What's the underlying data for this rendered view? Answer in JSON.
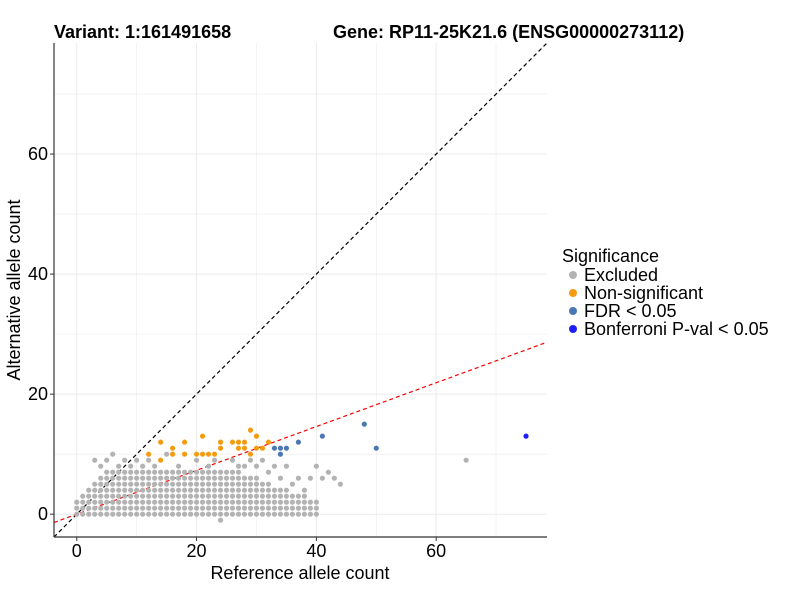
{
  "chart_data": {
    "type": "scatter",
    "title_left": "Variant: 1:161491658",
    "title_right": "Gene: RP11-25K21.6 (ENSG00000273112)",
    "xlabel": "Reference allele count",
    "ylabel": "Alternative allele count",
    "xlim": [
      -3.8,
      78.5
    ],
    "ylim": [
      -3.8,
      78.5
    ],
    "xticks": [
      0,
      20,
      40,
      60
    ],
    "yticks": [
      0,
      20,
      40,
      60
    ],
    "grid": true,
    "legend": {
      "title": "Significance",
      "position": "right",
      "entries": [
        {
          "name": "Excluded",
          "color": "#b3b3b3"
        },
        {
          "name": "Non-significant",
          "color": "#f39c12"
        },
        {
          "name": "FDR < 0.05",
          "color": "#4a78b5"
        },
        {
          "name": "Bonferroni P-val < 0.05",
          "color": "#1f1ff5"
        }
      ]
    },
    "reference_lines": [
      {
        "name": "identity",
        "slope": 1,
        "intercept": 0,
        "color": "#000000",
        "style": "dashed"
      },
      {
        "name": "fitted-ratio",
        "slope": 0.365,
        "intercept": 0,
        "color": "#ff0000",
        "style": "dashed"
      }
    ],
    "excluded_grid": {
      "description": "dense grid of excluded points",
      "x_range": [
        0,
        40
      ],
      "y_max_by_x": [
        2,
        3,
        4,
        5,
        6,
        7,
        7,
        8,
        7,
        7,
        7,
        7,
        7,
        7,
        7,
        7,
        7,
        7,
        7,
        7,
        7,
        7,
        7,
        7,
        7,
        7,
        7,
        7,
        6,
        6,
        6,
        5,
        5,
        4,
        4,
        4,
        3,
        3,
        3,
        2,
        2
      ],
      "y_min": 0
    },
    "series": [
      {
        "name": "Excluded",
        "points": [
          [
            32,
            7
          ],
          [
            34,
            6
          ],
          [
            37,
            6
          ],
          [
            39,
            6
          ],
          [
            40,
            8
          ],
          [
            41,
            6
          ],
          [
            42,
            7
          ],
          [
            43,
            6
          ],
          [
            44,
            5
          ],
          [
            65,
            9
          ],
          [
            38,
            4
          ],
          [
            36,
            5
          ],
          [
            24,
            -1
          ],
          [
            3,
            9
          ],
          [
            4,
            8
          ],
          [
            5,
            9
          ],
          [
            6,
            10
          ],
          [
            8,
            9
          ],
          [
            10,
            9
          ],
          [
            12,
            9
          ],
          [
            15,
            10
          ],
          [
            17,
            8
          ],
          [
            20,
            9
          ],
          [
            22,
            8
          ],
          [
            9,
            8
          ],
          [
            11,
            8
          ],
          [
            13,
            8
          ],
          [
            23,
            9
          ],
          [
            26,
            9
          ],
          [
            27,
            8
          ],
          [
            29,
            9
          ],
          [
            31,
            9
          ],
          [
            33,
            8
          ],
          [
            35,
            8
          ],
          [
            28,
            8
          ],
          [
            30,
            8
          ]
        ]
      },
      {
        "name": "Non-significant",
        "points": [
          [
            12,
            10
          ],
          [
            14,
            12
          ],
          [
            16,
            10
          ],
          [
            16,
            11
          ],
          [
            18,
            12
          ],
          [
            18,
            10
          ],
          [
            21,
            13
          ],
          [
            21,
            10
          ],
          [
            22,
            10
          ],
          [
            23,
            10
          ],
          [
            24,
            12
          ],
          [
            24,
            11
          ],
          [
            26,
            12
          ],
          [
            27,
            11
          ],
          [
            27,
            12
          ],
          [
            28,
            11
          ],
          [
            28,
            12
          ],
          [
            29,
            14
          ],
          [
            29,
            10
          ],
          [
            30,
            13
          ],
          [
            30,
            11
          ],
          [
            31,
            11
          ],
          [
            32,
            12
          ],
          [
            14,
            9
          ],
          [
            20,
            10
          ]
        ]
      },
      {
        "name": "FDR < 0.05",
        "points": [
          [
            33,
            11
          ],
          [
            34,
            11
          ],
          [
            34,
            10
          ],
          [
            35,
            11
          ],
          [
            37,
            12
          ],
          [
            41,
            13
          ],
          [
            48,
            15
          ],
          [
            50,
            11
          ]
        ]
      },
      {
        "name": "Bonferroni P-val < 0.05",
        "points": [
          [
            75,
            13
          ]
        ]
      }
    ]
  }
}
